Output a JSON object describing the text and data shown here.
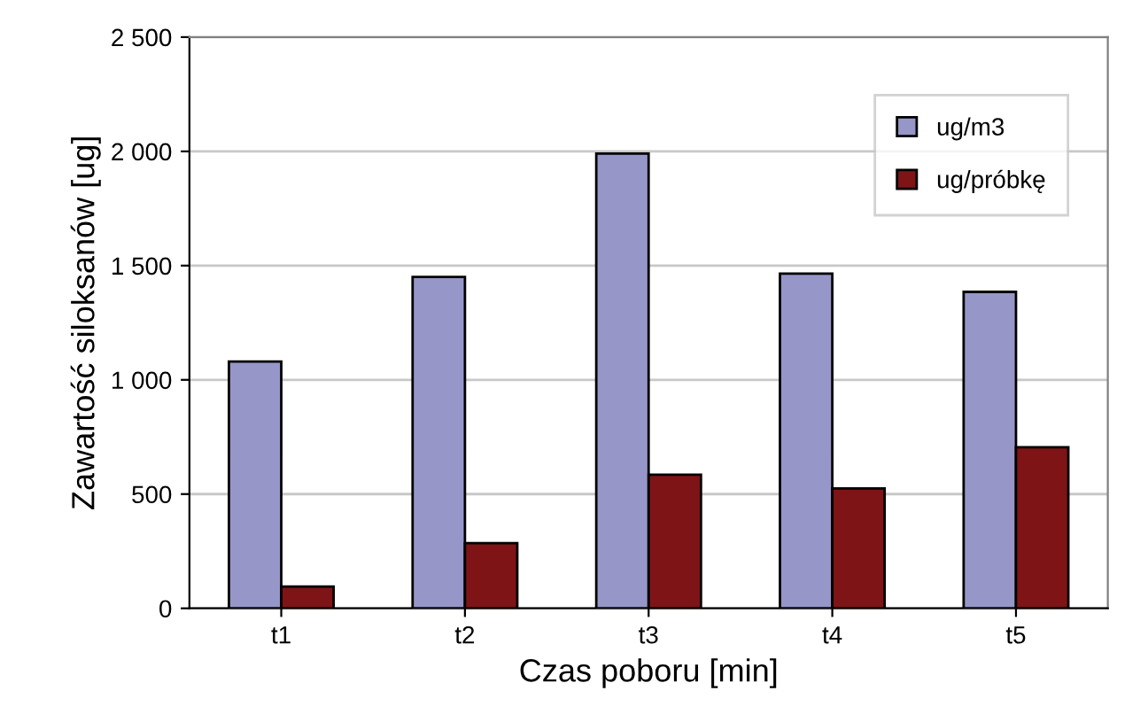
{
  "chart_data": {
    "type": "bar",
    "xlabel": "Czas poboru [min]",
    "ylabel": "Zawartość siloksanów [ug]",
    "categories": [
      "t1",
      "t2",
      "t3",
      "t4",
      "t5"
    ],
    "series": [
      {
        "name": "ug/m3",
        "color": "#9696c8",
        "values": [
          1080,
          1450,
          1990,
          1465,
          1385
        ]
      },
      {
        "name": "ug/próbkę",
        "color": "#7f1416",
        "values": [
          95,
          285,
          585,
          525,
          705
        ]
      }
    ],
    "ylim": [
      0,
      2500
    ],
    "yticks": [
      0,
      {
        "value": 500,
        "label": "500"
      },
      {
        "value": 1000,
        "label": "1 000"
      },
      {
        "value": 1500,
        "label": "1 500"
      },
      {
        "value": 2000,
        "label": "2 000"
      },
      {
        "value": 2500,
        "label": "2 500"
      }
    ],
    "grid": "y",
    "legend": "top right"
  }
}
